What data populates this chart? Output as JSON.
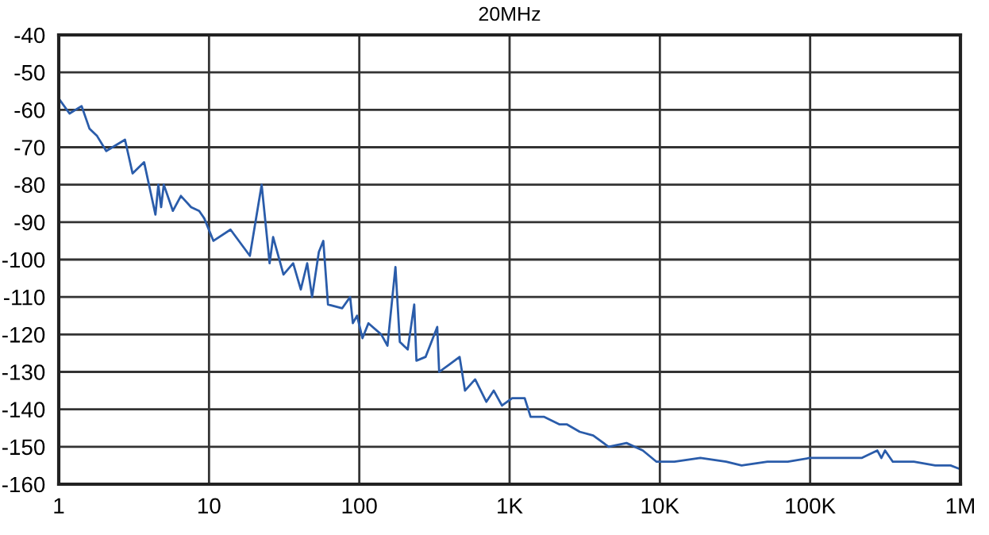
{
  "chart_data": {
    "type": "line",
    "title": "20MHz",
    "log": "x",
    "grid": true,
    "marker": "none",
    "line_style": "solid",
    "xlim": [
      1,
      1000000
    ],
    "ylim": [
      -160,
      -40
    ],
    "xticks": [
      1,
      10,
      100,
      {
        "value": 1000,
        "label": "1K"
      },
      {
        "value": 10000,
        "label": "10K"
      },
      {
        "value": 100000,
        "label": "100K"
      },
      {
        "value": 1000000,
        "label": "1M"
      }
    ],
    "yticks": [
      -40,
      -50,
      -60,
      -70,
      -80,
      -90,
      -100,
      -110,
      -120,
      -130,
      -140,
      -150,
      -160
    ],
    "series": [
      {
        "color": "#2a5caa",
        "x": [
          1,
          1.18,
          1.42,
          1.6,
          1.8,
          2.07,
          2.76,
          3.1,
          3.7,
          4.4,
          4.6,
          4.8,
          5.0,
          5.75,
          6.5,
          7.6,
          8.6,
          9.3,
          10.7,
          13.9,
          18.7,
          22.4,
          25.3,
          26.7,
          31.3,
          36.3,
          40.8,
          45,
          48.5,
          53.8,
          57.6,
          61.9,
          77,
          86.9,
          90.6,
          96.6,
          105,
          115,
          140,
          154,
          174,
          186,
          210,
          232,
          240,
          276,
          330,
          340,
          398,
          465,
          505,
          590,
          700,
          785,
          890,
          1040,
          1260,
          1380,
          1690,
          2140,
          2400,
          2930,
          3600,
          4560,
          6000,
          7700,
          9500,
          12500,
          18600,
          27600,
          35000,
          52000,
          71000,
          99000,
          136000,
          220000,
          280000,
          298000,
          315000,
          355000,
          490000,
          680000,
          860000,
          1000000
        ],
        "values": [
          -57,
          -61,
          -59,
          -65,
          -67,
          -71,
          -68,
          -77,
          -74,
          -88,
          -80,
          -86,
          -80,
          -87,
          -83,
          -86,
          -87,
          -89,
          -95,
          -92,
          -99,
          -80,
          -101,
          -94,
          -104,
          -101,
          -108,
          -101,
          -110,
          -98,
          -95,
          -112,
          -113,
          -110,
          -117,
          -115,
          -121,
          -117,
          -120,
          -123,
          -102,
          -122,
          -124,
          -112,
          -127,
          -126,
          -118,
          -130,
          -128,
          -126,
          -135,
          -132,
          -138,
          -135,
          -139,
          -137,
          -137,
          -142,
          -142,
          -144,
          -144,
          -146,
          -147,
          -150,
          -149,
          -151,
          -154,
          -154,
          -153,
          -154,
          -155,
          -154,
          -154,
          -153,
          -153,
          -153,
          -151,
          -153,
          -151,
          -154,
          -154,
          -155,
          -155,
          -156
        ]
      }
    ]
  }
}
